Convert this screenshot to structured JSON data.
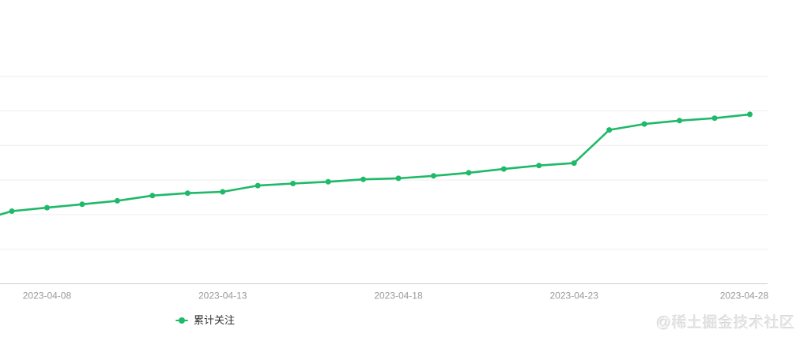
{
  "legend": {
    "label": "累计关注"
  },
  "watermark": {
    "text": "@稀土掘金技术社区"
  },
  "colors": {
    "series_green": "#1EB969",
    "gridline": "#ededed",
    "axis_line": "#cccccc",
    "axis_label": "#999999",
    "legend_text": "#333333",
    "watermark": "#e9e9e9",
    "background": "#ffffff"
  },
  "chart_data": {
    "type": "line",
    "title": "",
    "xlabel": "",
    "ylabel": "",
    "x": [
      "2023-04-07",
      "2023-04-08",
      "2023-04-09",
      "2023-04-10",
      "2023-04-11",
      "2023-04-12",
      "2023-04-13",
      "2023-04-14",
      "2023-04-15",
      "2023-04-16",
      "2023-04-17",
      "2023-04-18",
      "2023-04-19",
      "2023-04-20",
      "2023-04-21",
      "2023-04-22",
      "2023-04-23",
      "2023-04-24",
      "2023-04-25",
      "2023-04-26",
      "2023-04-27",
      "2023-04-28"
    ],
    "series": [
      {
        "name": "累计关注",
        "values": [
          2.1,
          2.2,
          2.3,
          2.4,
          2.55,
          2.62,
          2.66,
          2.84,
          2.9,
          2.95,
          3.02,
          3.05,
          3.12,
          3.21,
          3.32,
          3.42,
          3.49,
          4.45,
          4.62,
          4.72,
          4.79,
          4.9
        ]
      }
    ],
    "x_ticks": [
      {
        "label": "2023-04-08",
        "day_index": 1
      },
      {
        "label": "2023-04-13",
        "day_index": 6
      },
      {
        "label": "2023-04-18",
        "day_index": 11
      },
      {
        "label": "2023-04-23",
        "day_index": 16
      },
      {
        "label": "2023-04-28",
        "day_index": 21
      }
    ],
    "ylim": [
      0,
      6
    ],
    "y_axis_labels_visible": false,
    "value_note": "y-axis numeric labels are not visible in the screenshot; values are expressed in gridline units (1 unit = one horizontal gridline spacing, axis baseline = 0)",
    "left_edge_clip_value": 2.0,
    "grid": true,
    "legend_position": "bottom-left",
    "marker": "filled-circle"
  }
}
